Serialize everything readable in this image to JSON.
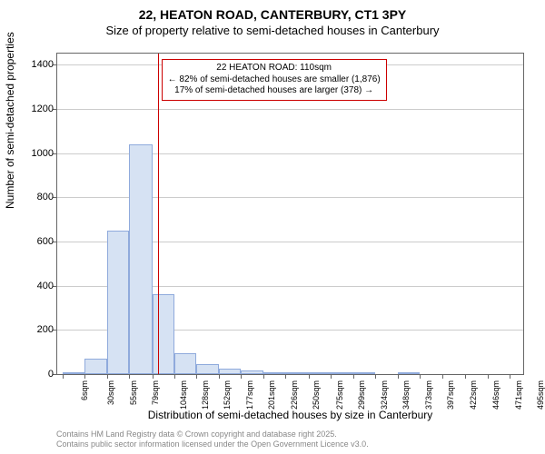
{
  "title_main": "22, HEATON ROAD, CANTERBURY, CT1 3PY",
  "title_sub": "Size of property relative to semi-detached houses in Canterbury",
  "ylabel": "Number of semi-detached properties",
  "xlabel": "Distribution of semi-detached houses by size in Canterbury",
  "attribution_line1": "Contains HM Land Registry data © Crown copyright and database right 2025.",
  "attribution_line2": "Contains public sector information licensed under the Open Government Licence v3.0.",
  "annotation_line1": "22 HEATON ROAD: 110sqm",
  "annotation_line2": "← 82% of semi-detached houses are smaller (1,876)",
  "annotation_line3": "17% of semi-detached houses are larger (378) →",
  "chart": {
    "type": "histogram",
    "background_color": "#ffffff",
    "grid_color": "#cccccc",
    "axis_color": "#666666",
    "bar_fill": "#d6e2f3",
    "bar_border": "#8faadc",
    "ref_line_color": "#cc0000",
    "ref_line_x": 110,
    "title_fontsize": 14,
    "subtitle_fontsize": 13,
    "label_fontsize": 12,
    "tick_fontsize": 11,
    "xtick_fontsize": 9,
    "annotation_fontsize": 10,
    "x_min": 0,
    "x_max": 510,
    "ylim": [
      0,
      1450
    ],
    "yticks": [
      0,
      200,
      400,
      600,
      800,
      1000,
      1200,
      1400
    ],
    "xticks": [
      {
        "pos": 6,
        "label": "6sqm"
      },
      {
        "pos": 30,
        "label": "30sqm"
      },
      {
        "pos": 55,
        "label": "55sqm"
      },
      {
        "pos": 79,
        "label": "79sqm"
      },
      {
        "pos": 104,
        "label": "104sqm"
      },
      {
        "pos": 128,
        "label": "128sqm"
      },
      {
        "pos": 152,
        "label": "152sqm"
      },
      {
        "pos": 177,
        "label": "177sqm"
      },
      {
        "pos": 201,
        "label": "201sqm"
      },
      {
        "pos": 226,
        "label": "226sqm"
      },
      {
        "pos": 250,
        "label": "250sqm"
      },
      {
        "pos": 275,
        "label": "275sqm"
      },
      {
        "pos": 299,
        "label": "299sqm"
      },
      {
        "pos": 324,
        "label": "324sqm"
      },
      {
        "pos": 348,
        "label": "348sqm"
      },
      {
        "pos": 373,
        "label": "373sqm"
      },
      {
        "pos": 397,
        "label": "397sqm"
      },
      {
        "pos": 422,
        "label": "422sqm"
      },
      {
        "pos": 446,
        "label": "446sqm"
      },
      {
        "pos": 471,
        "label": "471sqm"
      },
      {
        "pos": 495,
        "label": "495sqm"
      }
    ],
    "bars": [
      {
        "x0": 6,
        "x1": 30,
        "y": 5
      },
      {
        "x0": 30,
        "x1": 55,
        "y": 70
      },
      {
        "x0": 55,
        "x1": 79,
        "y": 650
      },
      {
        "x0": 79,
        "x1": 104,
        "y": 1040
      },
      {
        "x0": 104,
        "x1": 128,
        "y": 360
      },
      {
        "x0": 128,
        "x1": 152,
        "y": 95
      },
      {
        "x0": 152,
        "x1": 177,
        "y": 45
      },
      {
        "x0": 177,
        "x1": 201,
        "y": 25
      },
      {
        "x0": 201,
        "x1": 226,
        "y": 15
      },
      {
        "x0": 226,
        "x1": 250,
        "y": 10
      },
      {
        "x0": 250,
        "x1": 275,
        "y": 2
      },
      {
        "x0": 275,
        "x1": 299,
        "y": 10
      },
      {
        "x0": 299,
        "x1": 324,
        "y": 3
      },
      {
        "x0": 324,
        "x1": 348,
        "y": 2
      },
      {
        "x0": 348,
        "x1": 373,
        "y": 0
      },
      {
        "x0": 373,
        "x1": 397,
        "y": 2
      },
      {
        "x0": 397,
        "x1": 422,
        "y": 0
      },
      {
        "x0": 422,
        "x1": 446,
        "y": 0
      },
      {
        "x0": 446,
        "x1": 471,
        "y": 0
      },
      {
        "x0": 471,
        "x1": 495,
        "y": 0
      },
      {
        "x0": 495,
        "x1": 510,
        "y": 0
      }
    ]
  }
}
